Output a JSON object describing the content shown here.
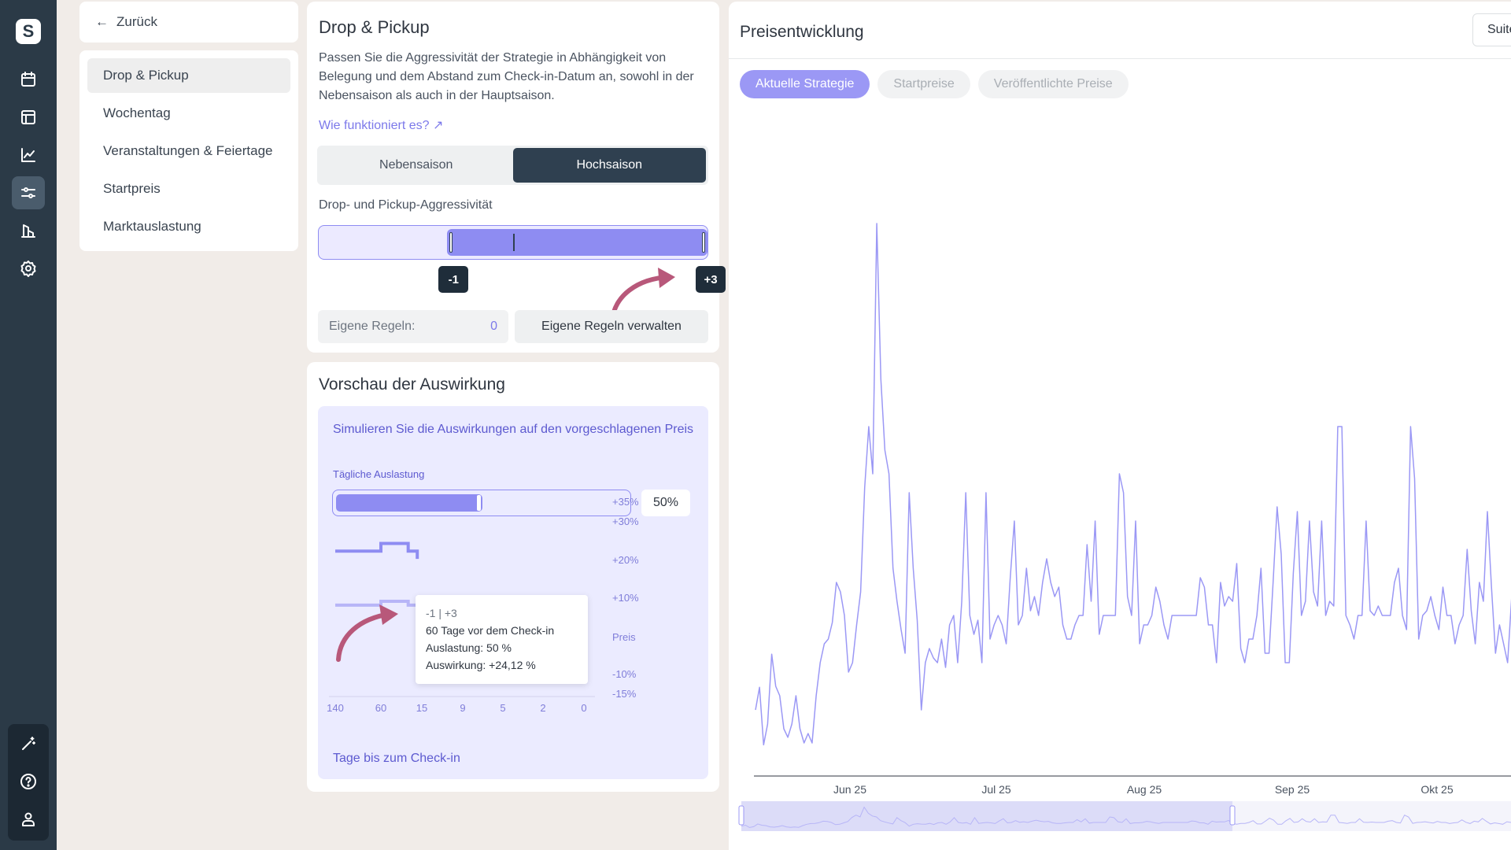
{
  "rail": {
    "logo": "S",
    "icons": [
      "calendar-icon",
      "layout-icon",
      "chart-line-icon",
      "sliders-icon",
      "buildings-icon",
      "settings-icon",
      "magic-wand-icon",
      "help-icon",
      "user-icon"
    ],
    "active_icon": "sliders-icon"
  },
  "subnav": {
    "back_label": "Zurück",
    "items": [
      {
        "label": "Drop & Pickup"
      },
      {
        "label": "Wochentag"
      },
      {
        "label": "Veranstaltungen & Feiertage"
      },
      {
        "label": "Startpreis"
      },
      {
        "label": "Marktauslastung"
      }
    ],
    "active_index": 0
  },
  "drop_pickup": {
    "title": "Drop & Pickup",
    "description": "Passen Sie die Aggressivität der Strategie in Abhängigkeit von Belegung und dem Abstand zum Check-in-Datum an, sowohl in der Nebensaison als auch in der Hauptsaison.",
    "how_link": "Wie funktioniert es? ↗",
    "season_tabs": [
      "Nebensaison",
      "Hochsaison"
    ],
    "active_season": "Hochsaison",
    "aggressiveness_label": "Drop- und Pickup-Aggressivität",
    "range_min_label": "-1",
    "range_max_label": "+3",
    "range_min_value": -1,
    "range_max_value": 3,
    "scale_min": -3,
    "scale_max": 3,
    "own_rules_label": "Eigene Regeln:",
    "own_rules_count": "0",
    "manage_rules_button": "Eigene Regeln verwalten",
    "accent_color": "#8e8cf2",
    "dark_color": "#2f4050"
  },
  "preview": {
    "title": "Vorschau der Auswirkung",
    "headline": "Simulieren Sie die Auswirkungen auf den vorgeschlagenen Preis",
    "occupancy_label": "Tägliche Auslastung",
    "occupancy_value": "50%",
    "occupancy_fraction": 0.5,
    "tooltip": {
      "line1": "-1 | +3",
      "line2": "60 Tage vor dem Check-in",
      "line3": "Auslastung: 50 %",
      "line4": "Auswirkung: +24,12 %"
    },
    "chart_data": {
      "type": "line",
      "x_tick_labels": [
        "140",
        "60",
        "15",
        "9",
        "5",
        "2",
        "0"
      ],
      "y_tick_labels": [
        "+35%",
        "+30%",
        "+20%",
        "+10%",
        "Preis",
        "-10%",
        "-15%"
      ],
      "xlabel": "Tage bis zum Check-in",
      "series": [
        {
          "points": [
            [
              140,
              23
            ],
            [
              60,
              25
            ],
            [
              45,
              25
            ],
            [
              30,
              23
            ],
            [
              20,
              21
            ]
          ]
        },
        {
          "points": [
            [
              140,
              9
            ],
            [
              60,
              10
            ],
            [
              45,
              10
            ],
            [
              30,
              9
            ],
            [
              20,
              9
            ]
          ]
        },
        {
          "points": [
            [
              9,
              1
            ],
            [
              5,
              1
            ],
            [
              4,
              0
            ],
            [
              2,
              0
            ],
            [
              1,
              -3
            ],
            [
              0,
              -3
            ]
          ]
        }
      ],
      "colors": [
        "#8e8cf2",
        "#b7b5f7",
        "#8e8cf2"
      ]
    }
  },
  "price_panel": {
    "title": "Preisentwicklung",
    "room_select": "Suite",
    "pills": [
      {
        "label": "Aktuelle Strategie",
        "active": true
      },
      {
        "label": "Startpreise",
        "active": false
      },
      {
        "label": "Veröffentlichte Preise",
        "active": false
      }
    ],
    "chart_data": {
      "type": "line",
      "x_tick_labels": [
        "Jun 25",
        "Jul 25",
        "Aug 25",
        "Sep 25",
        "Okt 25"
      ],
      "values": [
        100,
        148,
        26,
        70,
        218,
        150,
        130,
        60,
        42,
        70,
        130,
        60,
        30,
        50,
        30,
        130,
        200,
        240,
        250,
        285,
        370,
        350,
        300,
        180,
        200,
        280,
        350,
        570,
        700,
        600,
        1130,
        800,
        650,
        600,
        400,
        330,
        270,
        220,
        560,
        400,
        290,
        100,
        200,
        230,
        210,
        200,
        250,
        190,
        280,
        300,
        200,
        330,
        560,
        300,
        260,
        290,
        200,
        560,
        250,
        280,
        300,
        280,
        240,
        380,
        500,
        280,
        300,
        400,
        310,
        340,
        300,
        370,
        420,
        370,
        340,
        360,
        280,
        250,
        250,
        280,
        300,
        300,
        450,
        330,
        500,
        260,
        300,
        300,
        300,
        300,
        600,
        560,
        340,
        300,
        500,
        240,
        280,
        280,
        300,
        360,
        330,
        280,
        250,
        300,
        300,
        300,
        300,
        300,
        300,
        300,
        380,
        360,
        280,
        280,
        200,
        370,
        320,
        340,
        330,
        410,
        230,
        200,
        250,
        250,
        300,
        400,
        220,
        220,
        370,
        530,
        430,
        200,
        200,
        390,
        520,
        300,
        330,
        500,
        350,
        320,
        500,
        300,
        330,
        320,
        700,
        700,
        300,
        280,
        250,
        300,
        300,
        500,
        310,
        300,
        320,
        300,
        300,
        300,
        370,
        400,
        300,
        270,
        700,
        590,
        250,
        300,
        310,
        340,
        300,
        270,
        360,
        300,
        300,
        240,
        280,
        300,
        440,
        310,
        240,
        370,
        330,
        520,
        360,
        220,
        280,
        240,
        200,
        340,
        300
      ],
      "y_min": 0,
      "y_max": 1200,
      "line_color": "#9b98f5"
    }
  }
}
